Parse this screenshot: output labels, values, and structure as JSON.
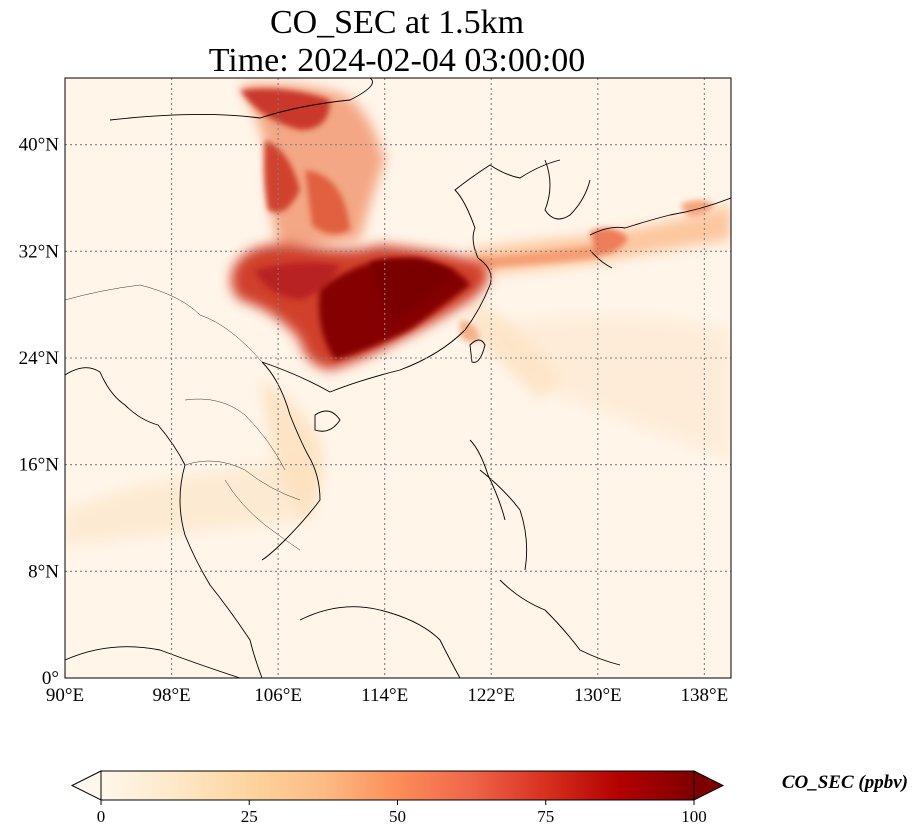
{
  "title": {
    "line1": "CO_SEC at 1.5km",
    "line2": "Time: 2024-02-04 03:00:00"
  },
  "map": {
    "projection": "PlateCarree",
    "lon_range": [
      90,
      140
    ],
    "lat_range": [
      0,
      45
    ],
    "gridlines": true,
    "coastlines": true,
    "borders": true,
    "x_ticks": [
      {
        "value": 90,
        "label": "90°E"
      },
      {
        "value": 98,
        "label": "98°E"
      },
      {
        "value": 106,
        "label": "106°E"
      },
      {
        "value": 114,
        "label": "114°E"
      },
      {
        "value": 122,
        "label": "122°E"
      },
      {
        "value": 130,
        "label": "130°E"
      },
      {
        "value": 138,
        "label": "138°E"
      }
    ],
    "y_ticks": [
      {
        "value": 0,
        "label": "0°"
      },
      {
        "value": 8,
        "label": "8°N"
      },
      {
        "value": 16,
        "label": "16°N"
      },
      {
        "value": 24,
        "label": "24°N"
      },
      {
        "value": 32,
        "label": "32°N"
      },
      {
        "value": 40,
        "label": "40°N"
      }
    ]
  },
  "colorbar": {
    "label": "CO_SEC (ppbv)",
    "colormap": "OrRd",
    "range": [
      0,
      100
    ],
    "extend": "both",
    "ticks": [
      {
        "value": 0,
        "label": "0"
      },
      {
        "value": 25,
        "label": "25"
      },
      {
        "value": 50,
        "label": "50"
      },
      {
        "value": 75,
        "label": "75"
      },
      {
        "value": 100,
        "label": "100"
      }
    ]
  },
  "colors": {
    "low": "#fff7ec",
    "mid_low": "#fdd49e",
    "mid": "#fc8d59",
    "mid_high": "#d7301f",
    "high": "#7f0000"
  }
}
